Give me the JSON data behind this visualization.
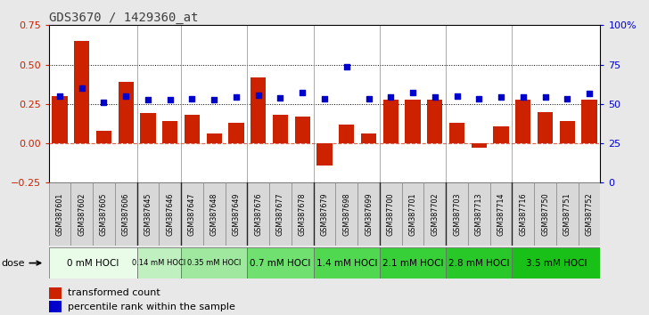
{
  "title": "GDS3670 / 1429360_at",
  "samples": [
    "GSM387601",
    "GSM387602",
    "GSM387605",
    "GSM387606",
    "GSM387645",
    "GSM387646",
    "GSM387647",
    "GSM387648",
    "GSM387649",
    "GSM387676",
    "GSM387677",
    "GSM387678",
    "GSM387679",
    "GSM387698",
    "GSM387699",
    "GSM387700",
    "GSM387701",
    "GSM387702",
    "GSM387703",
    "GSM387713",
    "GSM387714",
    "GSM387716",
    "GSM387750",
    "GSM387751",
    "GSM387752"
  ],
  "red_values": [
    0.3,
    0.65,
    0.08,
    0.39,
    0.19,
    0.14,
    0.18,
    0.065,
    0.13,
    0.42,
    0.18,
    0.17,
    -0.14,
    0.12,
    0.065,
    0.28,
    0.28,
    0.28,
    0.13,
    -0.03,
    0.11,
    0.28,
    0.2,
    0.14,
    0.28
  ],
  "blue_values": [
    0.3,
    0.35,
    0.26,
    0.3,
    0.28,
    0.28,
    0.285,
    0.28,
    0.295,
    0.305,
    0.29,
    0.325,
    0.285,
    0.485,
    0.285,
    0.295,
    0.325,
    0.295,
    0.3,
    0.285,
    0.295,
    0.295,
    0.295,
    0.285,
    0.315
  ],
  "dose_groups": [
    {
      "label": "0 mM HOCl",
      "start": 0,
      "end": 4,
      "color": "#e8fce8"
    },
    {
      "label": "0.14 mM HOCl",
      "start": 4,
      "end": 6,
      "color": "#c0f0c0"
    },
    {
      "label": "0.35 mM HOCl",
      "start": 6,
      "end": 9,
      "color": "#a0e8a0"
    },
    {
      "label": "0.7 mM HOCl",
      "start": 9,
      "end": 12,
      "color": "#70e070"
    },
    {
      "label": "1.4 mM HOCl",
      "start": 12,
      "end": 15,
      "color": "#50d850"
    },
    {
      "label": "2.1 mM HOCl",
      "start": 15,
      "end": 18,
      "color": "#38d038"
    },
    {
      "label": "2.8 mM HOCl",
      "start": 18,
      "end": 21,
      "color": "#28c828"
    },
    {
      "label": "3.5 mM HOCl",
      "start": 21,
      "end": 25,
      "color": "#18c018"
    }
  ],
  "ylim_left": [
    -0.25,
    0.75
  ],
  "ylim_right": [
    0,
    100
  ],
  "bar_color": "#cc2200",
  "dot_color": "#0000cc",
  "bg_color": "#ffffff",
  "fig_bg": "#e8e8e8",
  "title_color": "#404040"
}
